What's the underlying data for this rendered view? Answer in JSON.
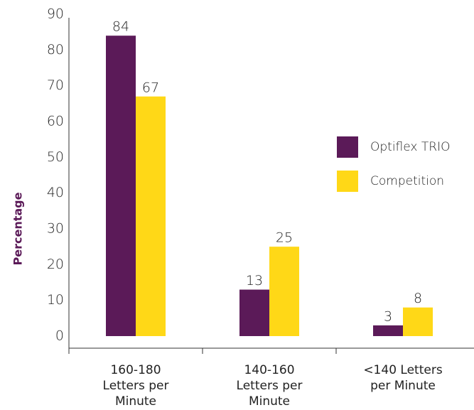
{
  "chart_data": {
    "type": "bar",
    "y_label": "Percentage",
    "categories": [
      "160-180 Letters per Minute",
      "140-160 Letters per Minute",
      "<140 Letters per Minute"
    ],
    "series": [
      {
        "name": "Optiflex TRIO",
        "color": "#5b1a58",
        "values": [
          84,
          13,
          3
        ]
      },
      {
        "name": "Competition",
        "color": "#ffd817",
        "values": [
          67,
          25,
          8
        ]
      }
    ],
    "ylim": [
      0,
      90
    ],
    "yticks": [
      0,
      10,
      20,
      30,
      40,
      50,
      60,
      70,
      80,
      90
    ],
    "legend": "right"
  }
}
